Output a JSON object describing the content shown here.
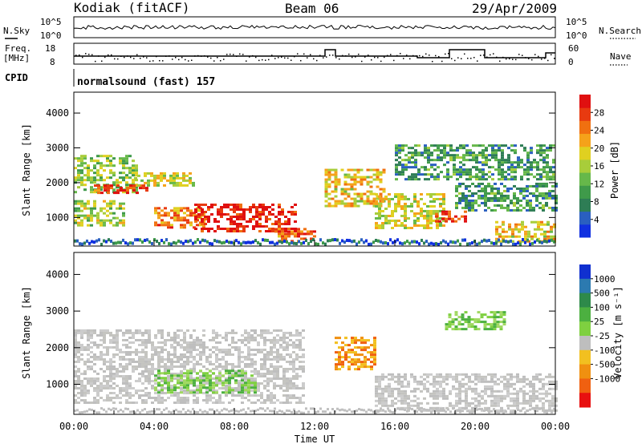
{
  "header": {
    "station": "Kodiak (fitACF)",
    "beam": "Beam 06",
    "date": "29/Apr/2009"
  },
  "noise_panel": {
    "left_label": "N.Sky",
    "right_label": "N.Search",
    "left_ticks": [
      "10^5",
      "10^0"
    ],
    "right_ticks": [
      "10^5",
      "10^0"
    ]
  },
  "freq_panel": {
    "left_label_1": "Freq.",
    "left_label_2": "[MHz]",
    "left_ticks": [
      "18",
      "8"
    ],
    "right_ticks": [
      "60",
      "0"
    ],
    "right_label": "Nave"
  },
  "cpid": {
    "label": "CPID",
    "program": "normalsound (fast) 157"
  },
  "chart_data": [
    {
      "type": "heatmap",
      "name": "power",
      "ylabel": "Slant Range [km]",
      "ylim": [
        180,
        4600
      ],
      "yticks": [
        "1000",
        "2000",
        "3000",
        "4000"
      ],
      "ytick_values": [
        1000,
        2000,
        3000,
        4000
      ],
      "colorbar": {
        "label": "Power [dB]",
        "range": [
          0,
          32
        ],
        "ticks": [
          "4",
          "8",
          "12",
          "16",
          "20",
          "24",
          "28"
        ],
        "tick_values": [
          4,
          8,
          12,
          16,
          20,
          24,
          28
        ],
        "colors": [
          "#1030e0",
          "#2a5fc0",
          "#2e7d55",
          "#3f9a4a",
          "#66b84a",
          "#a8cd3a",
          "#e0d020",
          "#f5a21a",
          "#f07010",
          "#e83a10",
          "#e01010"
        ]
      },
      "regions": [
        {
          "t": [
            0.0,
            3.2
          ],
          "r": [
            1700,
            2800
          ],
          "level": 0.45
        },
        {
          "t": [
            1.0,
            3.6
          ],
          "r": [
            1700,
            1950
          ],
          "level": 0.85
        },
        {
          "t": [
            3.0,
            6.0
          ],
          "r": [
            1900,
            2300
          ],
          "level": 0.55
        },
        {
          "t": [
            0.0,
            2.5
          ],
          "r": [
            800,
            1500
          ],
          "level": 0.5
        },
        {
          "t": [
            4.0,
            6.5
          ],
          "r": [
            700,
            1300
          ],
          "level": 0.75
        },
        {
          "t": [
            6.0,
            11.0
          ],
          "r": [
            600,
            1400
          ],
          "level": 0.95
        },
        {
          "t": [
            10.0,
            12.0
          ],
          "r": [
            350,
            700
          ],
          "level": 0.8
        },
        {
          "t": [
            12.5,
            15.5
          ],
          "r": [
            1300,
            2400
          ],
          "level": 0.6
        },
        {
          "t": [
            15.0,
            18.5
          ],
          "r": [
            700,
            1700
          ],
          "level": 0.55
        },
        {
          "t": [
            18.0,
            19.5
          ],
          "r": [
            900,
            1200
          ],
          "level": 0.9
        },
        {
          "t": [
            16.0,
            24.0
          ],
          "r": [
            2100,
            3100
          ],
          "level": 0.3
        },
        {
          "t": [
            19.0,
            24.0
          ],
          "r": [
            1200,
            2000
          ],
          "level": 0.3
        },
        {
          "t": [
            21.0,
            24.0
          ],
          "r": [
            300,
            900
          ],
          "level": 0.6
        }
      ]
    },
    {
      "type": "heatmap",
      "name": "velocity",
      "ylabel": "Slant Range [km]",
      "xlabel": "Time UT",
      "ylim": [
        180,
        4600
      ],
      "yticks": [
        "1000",
        "2000",
        "3000",
        "4000"
      ],
      "ytick_values": [
        1000,
        2000,
        3000,
        4000
      ],
      "xticks": [
        "00:00",
        "04:00",
        "08:00",
        "12:00",
        "16:00",
        "20:00",
        "00:00"
      ],
      "xtick_values": [
        0,
        4,
        8,
        12,
        16,
        20,
        24
      ],
      "xlim": [
        0,
        24
      ],
      "colorbar": {
        "label": "Velocity [m s⁻¹]",
        "ticks": [
          "1000",
          "500",
          "100",
          "25",
          "-25",
          "-100",
          "-500",
          "-1000"
        ],
        "colors": [
          "#1030d0",
          "#2c7ab0",
          "#2e8a4a",
          "#4cb040",
          "#7fd040",
          "#bebebe",
          "#f2c020",
          "#f09010",
          "#f06010",
          "#e81010"
        ]
      },
      "regions": [
        {
          "t": [
            0.0,
            11.5
          ],
          "r": [
            500,
            2500
          ],
          "kind": "gray"
        },
        {
          "t": [
            4.0,
            9.0
          ],
          "r": [
            800,
            1400
          ],
          "kind": "green"
        },
        {
          "t": [
            13.0,
            15.0
          ],
          "r": [
            1400,
            2300
          ],
          "kind": "orange"
        },
        {
          "t": [
            18.5,
            21.5
          ],
          "r": [
            2500,
            3000
          ],
          "kind": "green"
        },
        {
          "t": [
            15.0,
            24.0
          ],
          "r": [
            300,
            1300
          ],
          "kind": "gray"
        }
      ]
    }
  ]
}
